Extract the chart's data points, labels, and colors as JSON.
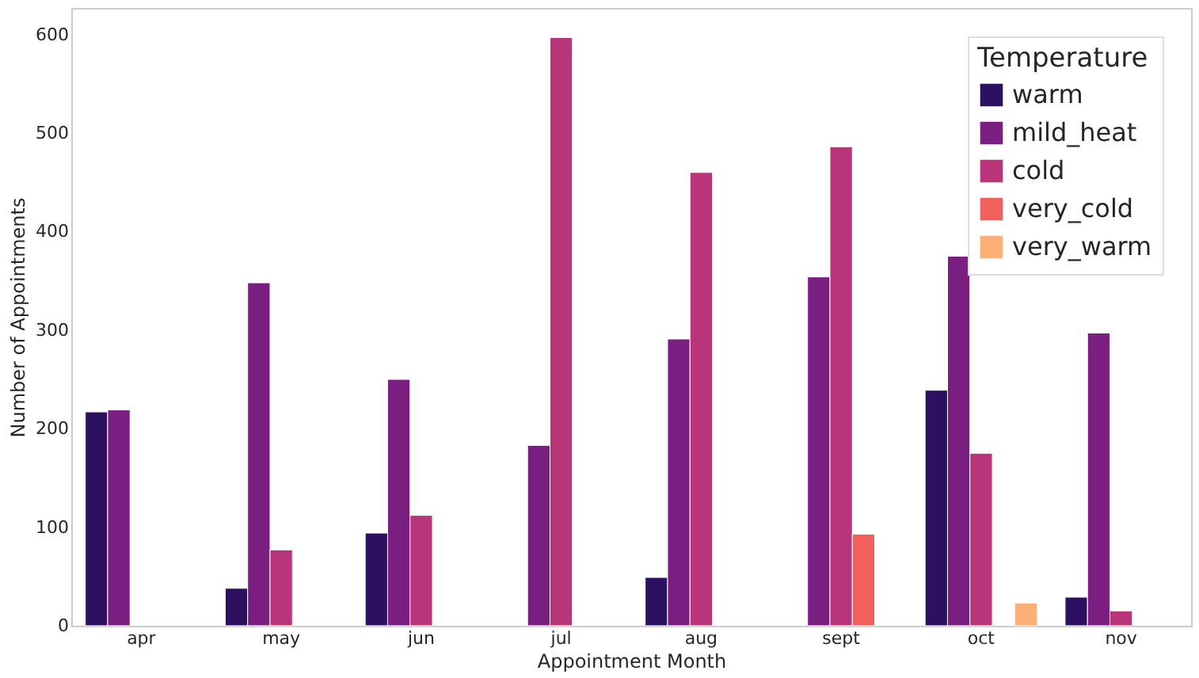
{
  "chart_data": {
    "type": "bar",
    "xlabel": "Appointment Month",
    "ylabel": "Number of Appointments",
    "legend_title": "Temperature",
    "categories": [
      "apr",
      "may",
      "jun",
      "jul",
      "aug",
      "sept",
      "oct",
      "nov"
    ],
    "series": [
      {
        "name": "warm",
        "color": "#2d1160",
        "values": [
          217,
          38,
          94,
          null,
          49,
          null,
          239,
          29
        ]
      },
      {
        "name": "mild_heat",
        "color": "#7a1e81",
        "values": [
          219,
          348,
          250,
          183,
          291,
          354,
          375,
          297
        ]
      },
      {
        "name": "cold",
        "color": "#b8357a",
        "values": [
          null,
          77,
          112,
          597,
          460,
          486,
          175,
          15
        ]
      },
      {
        "name": "very_cold",
        "color": "#f1605d",
        "values": [
          null,
          null,
          null,
          null,
          null,
          93,
          null,
          null
        ]
      },
      {
        "name": "very_warm",
        "color": "#feaf78",
        "values": [
          null,
          null,
          null,
          null,
          null,
          null,
          23,
          null
        ]
      }
    ],
    "ylim": [
      0,
      627
    ],
    "yticks": [
      0,
      100,
      200,
      300,
      400,
      500,
      600
    ],
    "grid": false,
    "legend": "top right"
  }
}
